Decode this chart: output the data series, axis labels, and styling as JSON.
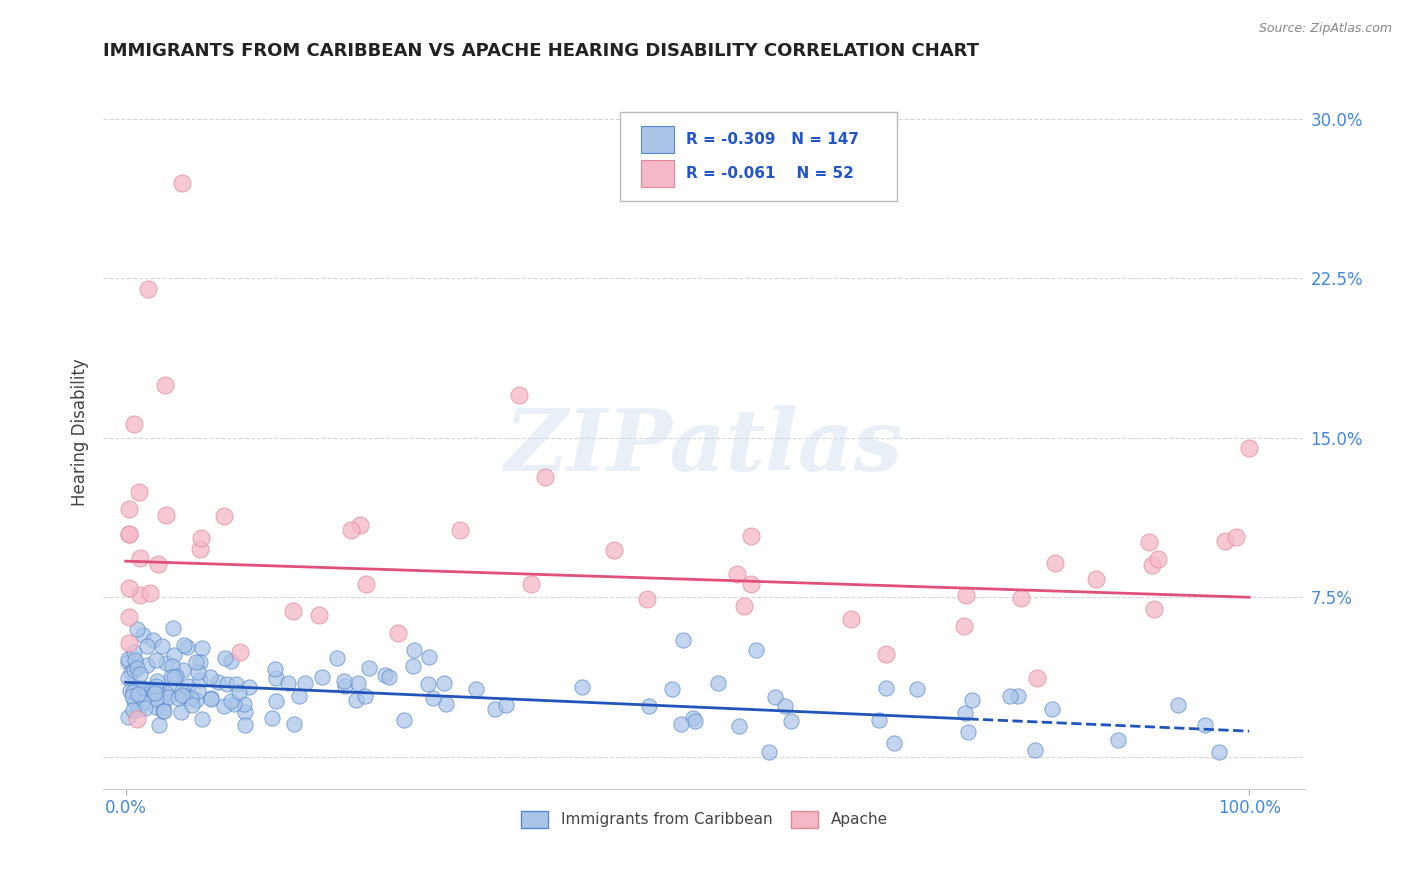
{
  "title": "IMMIGRANTS FROM CARIBBEAN VS APACHE HEARING DISABILITY CORRELATION CHART",
  "source": "Source: ZipAtlas.com",
  "ylabel": "Hearing Disability",
  "series1_label": "Immigrants from Caribbean",
  "series1_color": "#aac4e8",
  "series1_edge": "#5588cc",
  "series1_line_color": "#2255bb",
  "series1_R": "-0.309",
  "series1_N": "147",
  "series2_label": "Apache",
  "series2_color": "#f5b8c8",
  "series2_edge": "#e08898",
  "series2_line_color": "#e0507a",
  "series2_R": "-0.061",
  "series2_N": "52",
  "legend_text_color": "#2255cc",
  "watermark_text": "ZIPatlas",
  "background_color": "#ffffff",
  "grid_color": "#cccccc",
  "title_color": "#222222",
  "axis_label_color": "#444444",
  "tick_label_color": "#4488dd",
  "ytick_vals": [
    0,
    7.5,
    15.0,
    22.5,
    30.0
  ],
  "xlim": [
    -2,
    105
  ],
  "ylim": [
    -1.5,
    32
  ]
}
